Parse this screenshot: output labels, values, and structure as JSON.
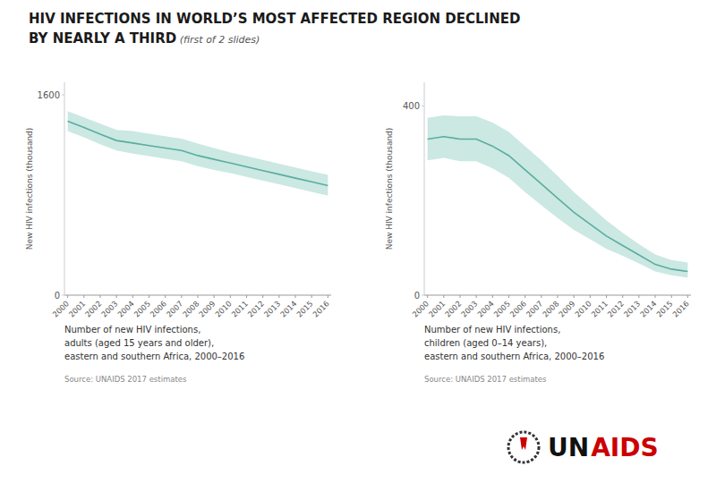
{
  "title": "HIV INFECTIONS IN WORLD’S MOST AFFECTED REGION DECLINED\nBY NEARLY A THIRD",
  "subtitle": " (first of 2 slides)",
  "annotations": [
    {
      "text": "UN",
      "color": "#111111"
    },
    {
      "text": "AIDS",
      "color": "#cc0000"
    }
  ],
  "chart_data": [
    {
      "type": "line",
      "x": [
        2000,
        2001,
        2002,
        2003,
        2004,
        2005,
        2006,
        2007,
        2008,
        2009,
        2010,
        2011,
        2012,
        2013,
        2014,
        2015,
        2016
      ],
      "xlim": [
        1999.8,
        2016.2
      ],
      "xticks": [
        2000,
        2001,
        2002,
        2003,
        2004,
        2005,
        2006,
        2007,
        2008,
        2009,
        2010,
        2011,
        2012,
        2013,
        2014,
        2015,
        2016
      ],
      "ylim": [
        0,
        1700
      ],
      "yticks": [
        0,
        1600
      ],
      "y_label": "New HIV infections (thousand)",
      "grid": false,
      "series": [
        {
          "type": "area",
          "color": "#a8d8d0",
          "upper": [
            1470,
            1420,
            1370,
            1320,
            1310,
            1290,
            1270,
            1250,
            1210,
            1175,
            1140,
            1110,
            1080,
            1050,
            1020,
            990,
            960
          ],
          "lower": [
            1310,
            1260,
            1205,
            1155,
            1130,
            1110,
            1090,
            1070,
            1030,
            1000,
            975,
            945,
            915,
            885,
            855,
            825,
            795
          ]
        },
        {
          "type": "line",
          "color": "#5aada0",
          "values": [
            1390,
            1340,
            1285,
            1235,
            1215,
            1195,
            1175,
            1155,
            1115,
            1085,
            1055,
            1025,
            995,
            965,
            935,
            905,
            875
          ]
        }
      ],
      "annotations": [
        "Number of new HIV infections,\nadults (aged 15 years and older),\neastern and southern Africa, 2000–2016",
        "Source: UNAIDS 2017 estimates"
      ]
    },
    {
      "type": "line",
      "x": [
        2000,
        2001,
        2002,
        2003,
        2004,
        2005,
        2006,
        2007,
        2008,
        2009,
        2010,
        2011,
        2012,
        2013,
        2014,
        2015,
        2016
      ],
      "xlim": [
        1999.8,
        2016.2
      ],
      "xticks": [
        2000,
        2001,
        2002,
        2003,
        2004,
        2005,
        2006,
        2007,
        2008,
        2009,
        2010,
        2011,
        2012,
        2013,
        2014,
        2015,
        2016
      ],
      "ylim": [
        0,
        450
      ],
      "yticks": [
        0,
        400
      ],
      "y_label": "New HIV infections (thousand)",
      "grid": false,
      "series": [
        {
          "type": "area",
          "color": "#a8d8d0",
          "upper": [
            375,
            380,
            378,
            378,
            365,
            345,
            315,
            285,
            252,
            218,
            188,
            158,
            132,
            108,
            86,
            74,
            69
          ],
          "lower": [
            285,
            290,
            283,
            283,
            268,
            248,
            218,
            190,
            163,
            138,
            118,
            98,
            83,
            67,
            50,
            42,
            37
          ]
        },
        {
          "type": "line",
          "color": "#5aada0",
          "values": [
            330,
            335,
            330,
            330,
            315,
            295,
            265,
            235,
            205,
            175,
            150,
            125,
            105,
            85,
            65,
            55,
            50
          ]
        }
      ],
      "annotations": [
        "Number of new HIV infections,\nchildren (aged 0–14 years),\neastern and southern Africa, 2000–2016",
        "Source: UNAIDS 2017 estimates"
      ]
    }
  ]
}
